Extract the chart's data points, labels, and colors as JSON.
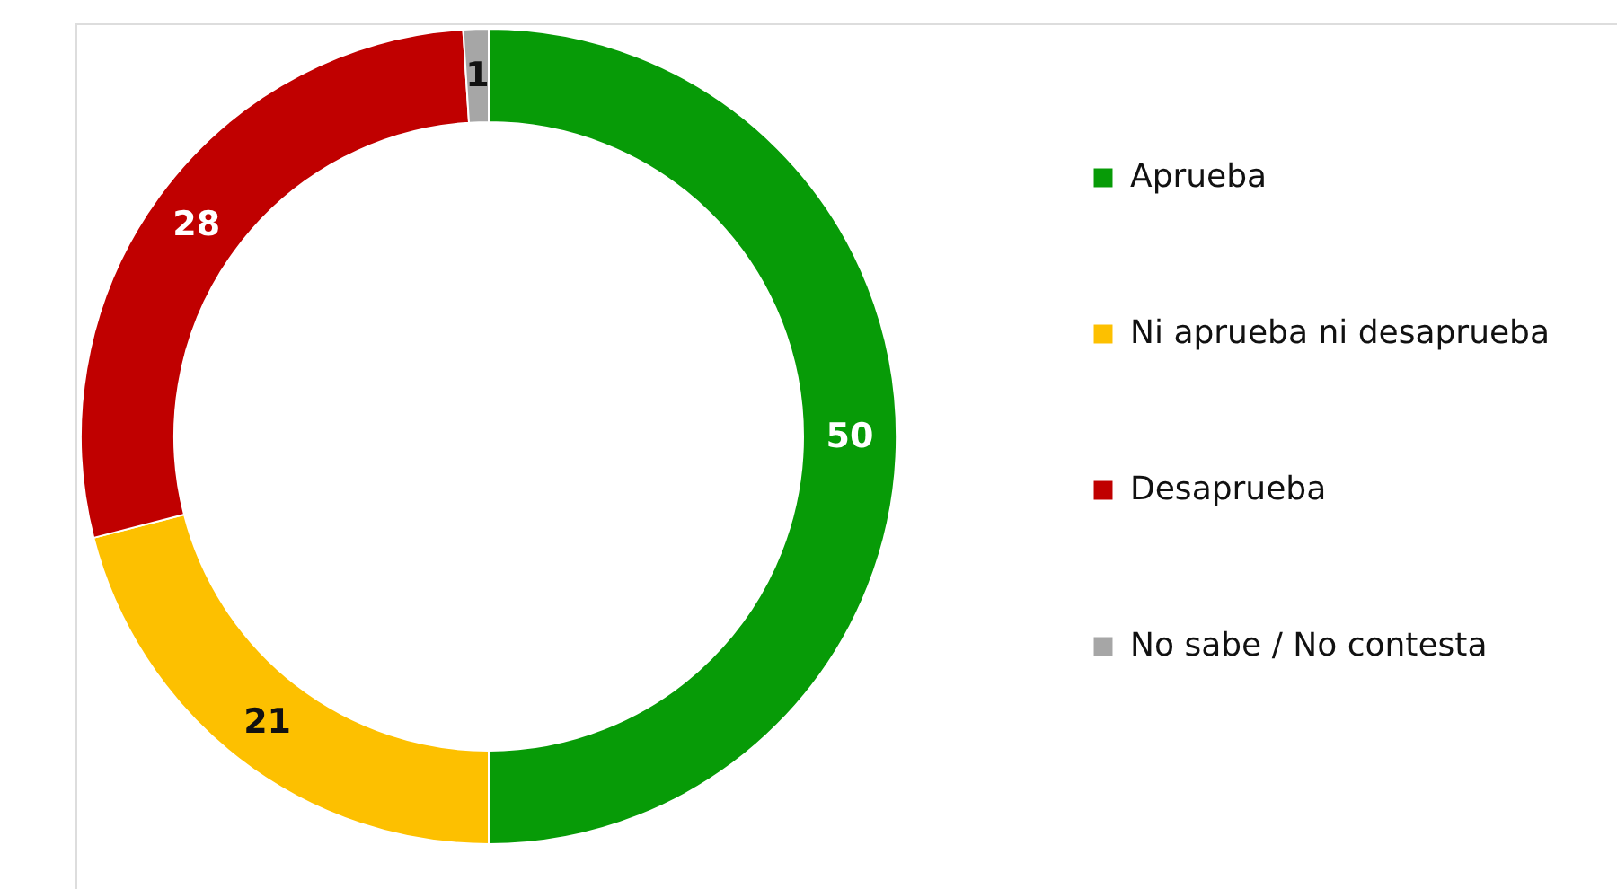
{
  "chart_data": {
    "type": "donut",
    "categories": [
      "Aprueba",
      "Ni aprueba ni desaprueba",
      "Desaprueba",
      "No sabe / No contesta"
    ],
    "values": [
      50,
      21,
      28,
      1
    ],
    "colors": [
      "#079b07",
      "#fdc000",
      "#c00000",
      "#a6a6a6"
    ],
    "data_labels": true,
    "legend": "right"
  }
}
